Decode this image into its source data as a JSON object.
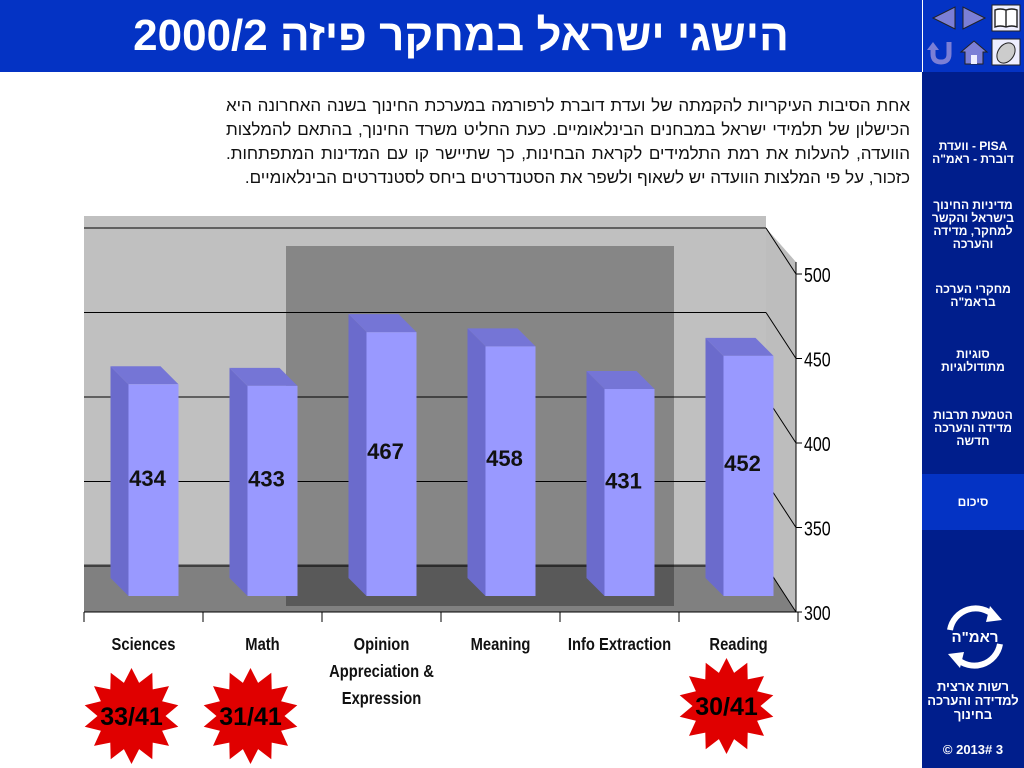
{
  "title": "הישגי ישראל במחקר פיזה 2000/2",
  "intro": "אחת הסיבות העיקריות להקמתה של ועדת דוברת לרפורמה במערכת החינוך בשנה האחרונה היא הכישלון של תלמידי ישראל במבחנים הבינלאומיים. כעת החליט משרד החינוך, בהתאם להמלצות הוועדה, להעלות את רמת התלמידים לקראת הבחינות, כך שתיישר קו עם המדינות המתפתחות. כזכור, על פי המלצות הוועדה יש לשאוף ולשפר את הסטנדרטים ביחס לסטנדרטים הבינלאומיים.",
  "sidebar": {
    "items": [
      {
        "label": "PISA - וועדת דוברת - ראמ\"ה"
      },
      {
        "label": "מדיניות החינוך בישראל והקשר למחקר, מדידה והערכה"
      },
      {
        "label": "מחקרי הערכה בראמ\"ה"
      },
      {
        "label": "סוגיות מתודולוגיות"
      },
      {
        "label": "הטמעת תרבות מדידה והערכה חדשה"
      },
      {
        "label": "סיכום"
      }
    ]
  },
  "logo_text": "ראמ\"ה",
  "org_name": "רשות ארצית למדידה והערכה בחינוך",
  "copyright": "© 2013# 3",
  "nav_icons": [
    "back-arrow-icon",
    "forward-arrow-icon",
    "book-icon",
    "return-icon",
    "home-icon",
    "mouse-icon"
  ],
  "colors": {
    "title_bg": "#0433c4",
    "sidebar_bg": "#001e8c",
    "bar_front": "#9999ff",
    "bar_side": "#6b6bcc",
    "bar_top": "#7575d6",
    "star": "#e00000"
  },
  "chart_data": {
    "type": "bar",
    "categories": [
      "Sciences",
      "Math",
      "Opinion Appreciation & Expression",
      "Meaning",
      "Info Extraction",
      "Reading"
    ],
    "category_lines": [
      [
        "Sciences"
      ],
      [
        "Math"
      ],
      [
        "Opinion",
        "Appreciation &",
        "Expression"
      ],
      [
        "Meaning"
      ],
      [
        "Info Extraction"
      ],
      [
        "Reading"
      ]
    ],
    "values": [
      434,
      433,
      467,
      458,
      431,
      452
    ],
    "ylim": [
      300,
      500
    ],
    "yticks": [
      300,
      350,
      400,
      450,
      500
    ],
    "grid": true,
    "highlighted_categories": [
      "Opinion Appreciation & Expression",
      "Meaning",
      "Info Extraction"
    ],
    "rank_badges": [
      {
        "category": "Sciences",
        "label": "33/41"
      },
      {
        "category": "Math",
        "label": "31/41"
      },
      {
        "category": "Reading",
        "label": "30/41"
      }
    ]
  }
}
